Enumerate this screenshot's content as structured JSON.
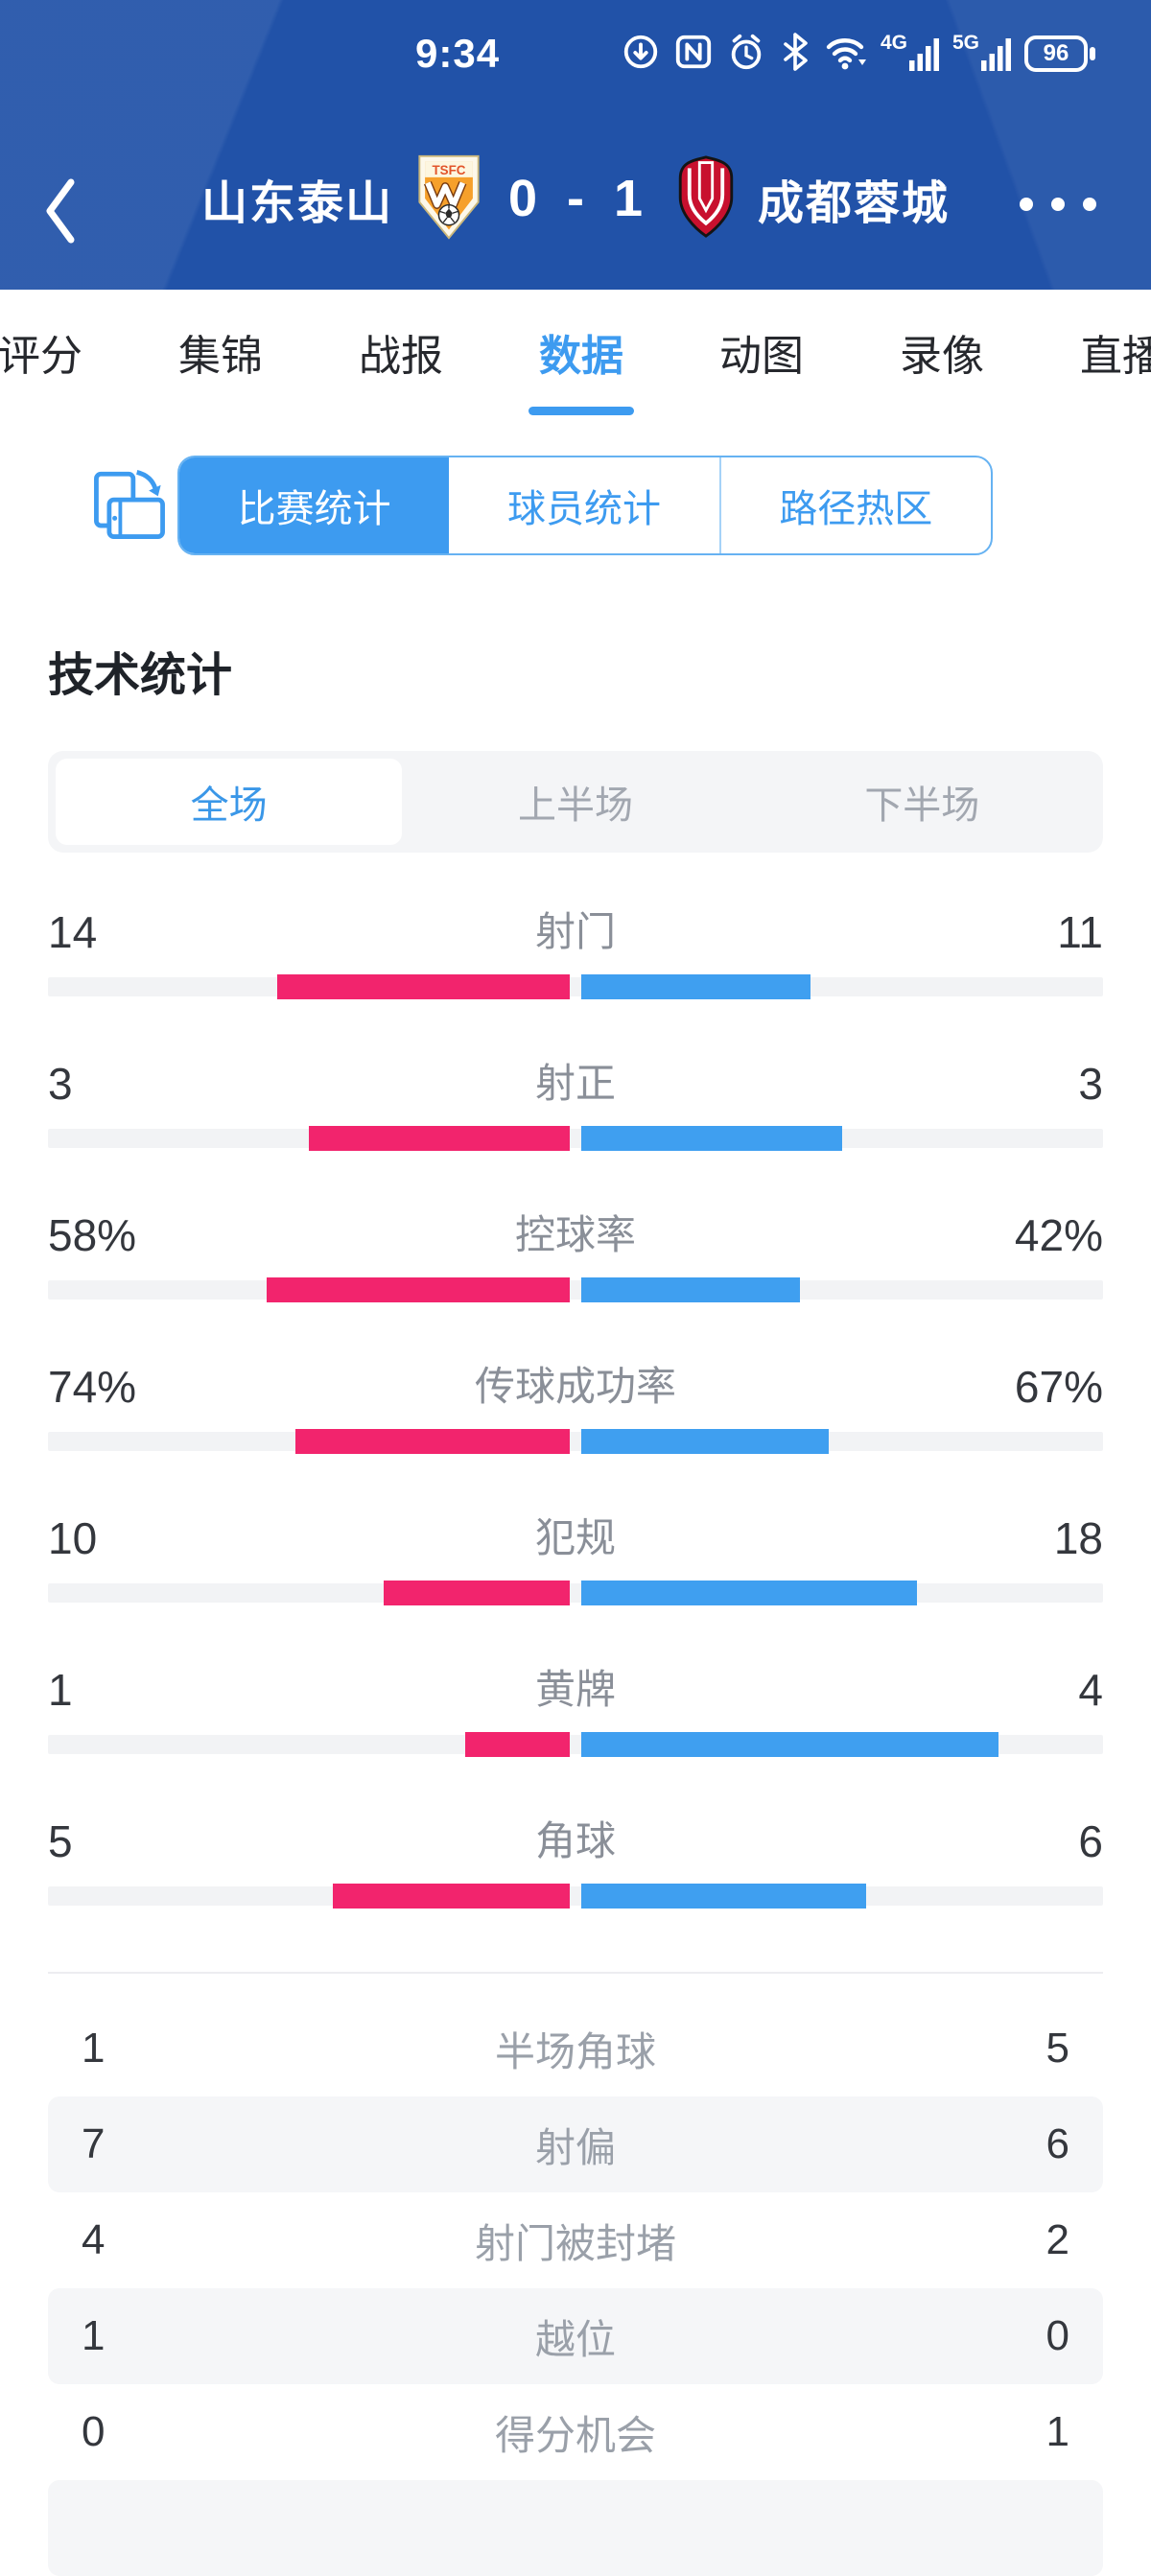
{
  "status_bar": {
    "time": "9:34",
    "battery": "96",
    "network_4g": "4G",
    "network_5g": "5G",
    "icons": [
      "data-saver-icon",
      "nfc-icon",
      "alarm-icon",
      "bluetooth-icon",
      "wifi-icon",
      "signal-4g-icon",
      "signal-5g-icon",
      "battery-icon"
    ]
  },
  "header": {
    "home_team": "山东泰山",
    "score": "0 - 1",
    "away_team": "成都蓉城",
    "home_badge_text": "TSFC",
    "back_icon": "back-chevron-icon",
    "more_icon": "ellipsis-icon"
  },
  "nav_tabs": {
    "items": [
      "评分",
      "集锦",
      "战报",
      "数据",
      "动图",
      "录像",
      "直播"
    ],
    "active_index": 3
  },
  "stat_type_segments": {
    "rotate_icon": "rotate-screen-icon",
    "items": [
      "比赛统计",
      "球员统计",
      "路径热区"
    ],
    "active_index": 0
  },
  "section_title": "技术统计",
  "period_tabs": {
    "items": [
      "全场",
      "上半场",
      "下半场"
    ],
    "active_index": 0
  },
  "chart_data": {
    "type": "bar",
    "title": "技术统计",
    "legend_position": "none",
    "teams": {
      "home": "山东泰山",
      "away": "成都蓉城"
    },
    "bar_scale": "value / (home+away) of half track width, bars grow outward from center",
    "bar_stats": [
      {
        "label": "射门",
        "home": 14,
        "away": 11,
        "home_display": "14",
        "away_display": "11"
      },
      {
        "label": "射正",
        "home": 3,
        "away": 3,
        "home_display": "3",
        "away_display": "3"
      },
      {
        "label": "控球率",
        "home": 58,
        "away": 42,
        "home_display": "58%",
        "away_display": "42%"
      },
      {
        "label": "传球成功率",
        "home": 74,
        "away": 67,
        "home_display": "74%",
        "away_display": "67%"
      },
      {
        "label": "犯规",
        "home": 10,
        "away": 18,
        "home_display": "10",
        "away_display": "18"
      },
      {
        "label": "黄牌",
        "home": 1,
        "away": 4,
        "home_display": "1",
        "away_display": "4"
      },
      {
        "label": "角球",
        "home": 5,
        "away": 6,
        "home_display": "5",
        "away_display": "6"
      }
    ],
    "list_stats": [
      {
        "label": "半场角球",
        "home": "1",
        "away": "5"
      },
      {
        "label": "射偏",
        "home": "7",
        "away": "6"
      },
      {
        "label": "射门被封堵",
        "home": "4",
        "away": "2"
      },
      {
        "label": "越位",
        "home": "1",
        "away": "0"
      },
      {
        "label": "得分机会",
        "home": "0",
        "away": "1"
      }
    ]
  },
  "colors": {
    "header_bg": "#2152a8",
    "accent_blue": "#3d9bf0",
    "home_pink": "#f2246d",
    "away_blue": "#3f9ff0",
    "track_gray": "#f2f3f5",
    "row_alt_bg": "#f5f6f8"
  }
}
